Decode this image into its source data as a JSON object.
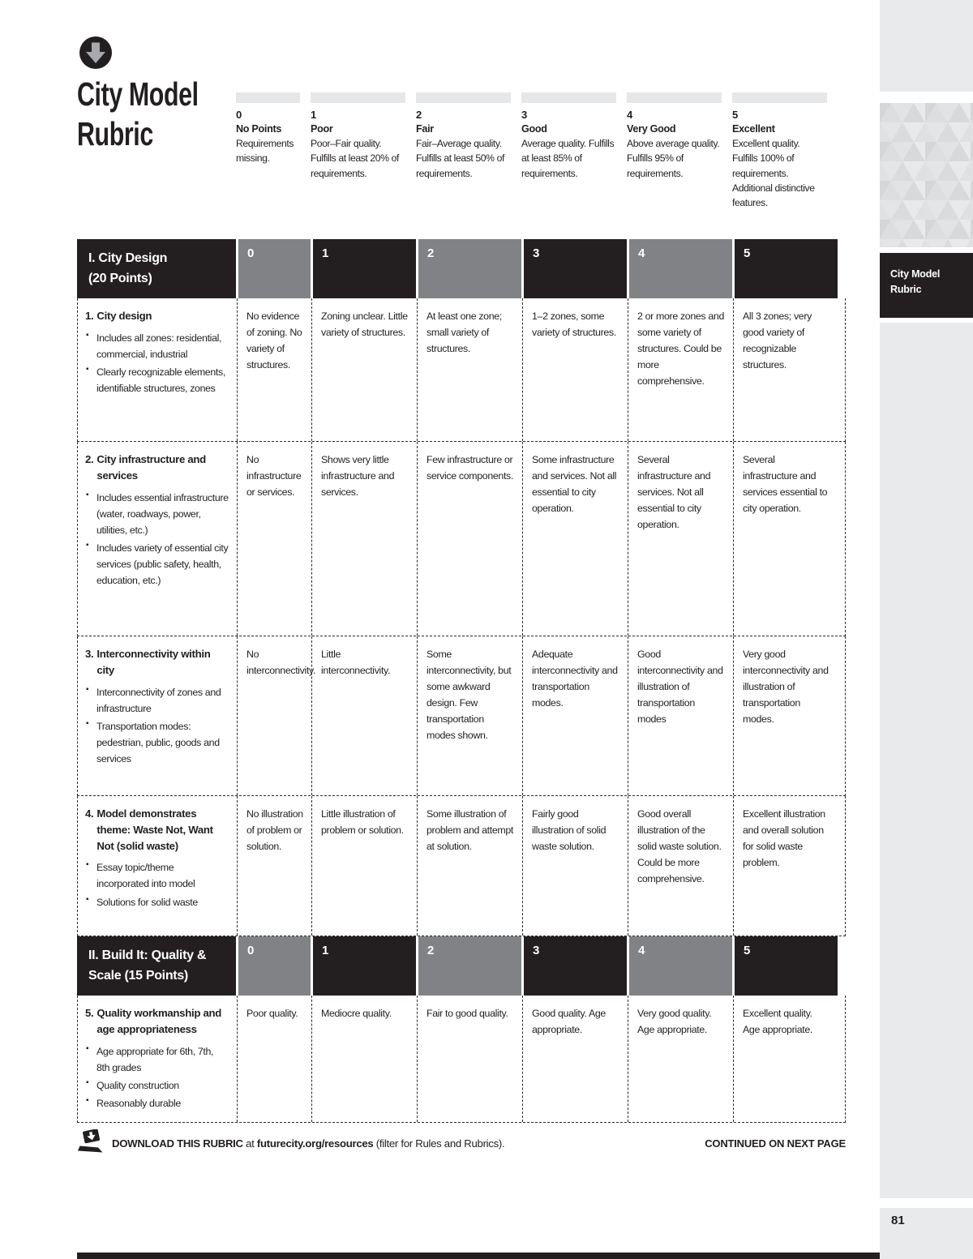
{
  "header": {
    "title_line1": "City Model",
    "title_line2": "Rubric",
    "logo_icon": "circle-down-arrow-icon"
  },
  "legend": {
    "levels": [
      {
        "score": "0",
        "name": "No Points",
        "description": "Requirements missing."
      },
      {
        "score": "1",
        "name": "Poor",
        "description": "Poor–Fair quality. Fulfills at least 20% of requirements."
      },
      {
        "score": "2",
        "name": "Fair",
        "description": "Fair–Average quality. Fulfills at least 50% of requirements."
      },
      {
        "score": "3",
        "name": "Good",
        "description": "Average quality. Fulfills at least 85% of requirements."
      },
      {
        "score": "4",
        "name": "Very Good",
        "description": "Above average quality. Fulfills 95% of requirements."
      },
      {
        "score": "5",
        "name": "Excellent",
        "description": "Excellent quality. Fulfills 100% of requirements. Additional distinctive features."
      }
    ]
  },
  "rubric": {
    "score_columns": [
      "0",
      "1",
      "2",
      "3",
      "4",
      "5"
    ],
    "sections": [
      {
        "title_line1": "I. City Design",
        "title_line2": "(20 Points)",
        "rows": [
          {
            "num": "1.",
            "title": "City design",
            "bullets": [
              "Includes all zones: residential, commercial, industrial",
              "Clearly recognizable elements, identifiable structures, zones"
            ],
            "cells": [
              "No evidence of zoning. No variety of structures.",
              "Zoning unclear. Little variety of structures.",
              "At least one zone; small variety of structures.",
              "1–2 zones, some variety of structures.",
              "2 or more zones and some variety of structures. Could be more comprehensive.",
              "All 3 zones; very good variety of recognizable structures."
            ]
          },
          {
            "num": "2.",
            "title": "City infrastructure and services",
            "bullets": [
              "Includes essential infrastructure (water, roadways, power, utilities, etc.)",
              "Includes variety of essential city services (public safety, health, education, etc.)"
            ],
            "cells": [
              "No infrastructure or services.",
              "Shows very little infrastructure and services.",
              "Few infrastructure or service components.",
              "Some infrastructure and services. Not all essential to city operation.",
              "Several infrastructure and services. Not all essential to city operation.",
              "Several infrastructure and services essential to city operation."
            ]
          },
          {
            "num": "3.",
            "title": "Interconnectivity within city",
            "bullets": [
              "Interconnectivity of zones and infrastructure",
              "Transportation modes: pedestrian, public, goods and services"
            ],
            "cells": [
              "No interconnectivity.",
              "Little interconnectivity.",
              "Some interconnectivity, but some awkward design. Few transportation modes shown.",
              "Adequate interconnectivity and transportation modes.",
              "Good interconnectivity and illustration of transportation modes",
              "Very good interconnectivity and illustration of transportation modes."
            ]
          },
          {
            "num": "4.",
            "title": "Model demonstrates theme: Waste Not, Want Not (solid waste)",
            "bullets": [
              "Essay topic/theme incorporated into model",
              "Solutions for solid waste"
            ],
            "cells": [
              "No illustration of problem or solution.",
              "Little illustration of problem or solution.",
              "Some illustration of problem and attempt at solution.",
              "Fairly good illustration of solid waste solution.",
              "Good overall illustration of the solid waste solution. Could be more comprehensive.",
              "Excellent illustration and overall solution for solid waste problem."
            ]
          }
        ]
      },
      {
        "title_line1": "II. Build It: Quality &",
        "title_line2": "Scale (15 Points)",
        "rows": [
          {
            "num": "5.",
            "title": "Quality workmanship and age appropriateness",
            "bullets": [
              "Age appropriate for 6th, 7th, 8th grades",
              "Quality construction",
              "Reasonably durable"
            ],
            "cells": [
              "Poor quality.",
              "Mediocre quality.",
              "Fair to good quality.",
              "Good quality. Age appropriate.",
              "Very good quality. Age appropriate.",
              "Excellent quality. Age appropriate."
            ]
          }
        ]
      }
    ]
  },
  "footer": {
    "download_bold": "DOWNLOAD THIS RUBRIC",
    "download_mid": " at ",
    "download_link": "futurecity.org/resources",
    "download_rest": " (filter for Rules and Rubrics).",
    "download_icon": "laptop-download-icon",
    "continued": "CONTINUED ON NEXT PAGE"
  },
  "sidebar": {
    "label_line1": "City Model",
    "label_line2": "Rubric",
    "page_number": "81"
  },
  "colors": {
    "ink": "#231f20",
    "header_grey": "#808285",
    "legend_bar": "#e6e7e8",
    "sidebar_bg": "#e9eaec"
  }
}
